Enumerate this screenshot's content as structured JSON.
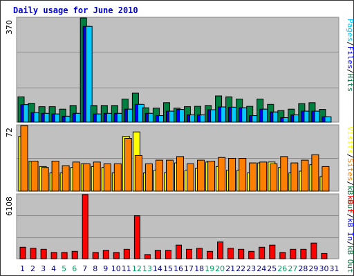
{
  "title": "Daily usage for June 2010",
  "chart_data": [
    {
      "type": "bar",
      "panel": "hits-files-pages",
      "ymax_label": "370",
      "ylim": [
        0,
        370
      ],
      "legend": [
        "Pages",
        "/",
        "Files",
        "/",
        "Hits"
      ],
      "legend_colors": [
        "#00ccff",
        "#000000",
        "#0000ff",
        "#000000",
        "#008040"
      ],
      "categories": [
        1,
        2,
        3,
        4,
        5,
        6,
        7,
        8,
        9,
        10,
        11,
        12,
        13,
        14,
        15,
        16,
        17,
        18,
        19,
        20,
        21,
        22,
        23,
        24,
        25,
        26,
        27,
        28,
        29,
        30,
        31
      ],
      "series": [
        {
          "name": "Hits",
          "color": "#008040",
          "values": [
            90,
            67,
            55,
            55,
            46,
            59,
            370,
            59,
            59,
            59,
            82,
            103,
            51,
            50,
            69,
            50,
            55,
            56,
            59,
            93,
            90,
            82,
            56,
            82,
            63,
            41,
            46,
            66,
            69,
            45,
            0
          ]
        },
        {
          "name": "Files",
          "color": "#0000ff",
          "values": [
            62,
            34,
            31,
            29,
            21,
            31,
            340,
            29,
            31,
            31,
            46,
            63,
            31,
            23,
            39,
            45,
            26,
            26,
            44,
            54,
            53,
            51,
            23,
            46,
            36,
            16,
            26,
            39,
            39,
            19,
            0
          ]
        },
        {
          "name": "Pages",
          "color": "#00ccff",
          "values": [
            62,
            34,
            31,
            29,
            21,
            31,
            340,
            29,
            31,
            31,
            46,
            63,
            31,
            23,
            39,
            45,
            26,
            26,
            44,
            54,
            53,
            51,
            23,
            46,
            36,
            16,
            26,
            39,
            39,
            19,
            0
          ]
        }
      ]
    },
    {
      "type": "bar",
      "panel": "visits-sites",
      "ymax_label": "72",
      "ylim": [
        0,
        72
      ],
      "legend": [
        "Visits",
        "/",
        "Sites",
        "/",
        "kB Out"
      ],
      "legend_colors": [
        "#ffff00",
        "#000000",
        "#ff8000",
        "#000000",
        "#008040"
      ],
      "categories": [
        1,
        2,
        3,
        4,
        5,
        6,
        7,
        8,
        9,
        10,
        11,
        12,
        13,
        14,
        15,
        16,
        17,
        18,
        19,
        20,
        21,
        22,
        23,
        24,
        25,
        26,
        27,
        28,
        29,
        30,
        31
      ],
      "series": [
        {
          "name": "Visits",
          "color": "#ffff00",
          "values": [
            60,
            33,
            27,
            20,
            20,
            26,
            30,
            27,
            26,
            20,
            60,
            65,
            20,
            23,
            20,
            31,
            23,
            25,
            32,
            27,
            23,
            23,
            20,
            31,
            32,
            26,
            20,
            22,
            29,
            16,
            0
          ]
        },
        {
          "name": "Sites",
          "color": "#ff8000",
          "values": [
            72,
            33,
            26,
            33,
            28,
            32,
            30,
            32,
            30,
            30,
            58,
            39,
            30,
            34,
            34,
            38,
            30,
            34,
            33,
            37,
            36,
            36,
            31,
            32,
            30,
            38,
            31,
            34,
            40,
            27,
            0
          ]
        }
      ]
    },
    {
      "type": "bar",
      "panel": "kbytes",
      "ymax_label": "6108",
      "ylim": [
        0,
        6108
      ],
      "legend": [
        "kB F",
        "/",
        "kB In",
        "/",
        "kB Out"
      ],
      "legend_colors": [
        "#ff0000",
        "#000000",
        "#0000ff",
        "#000000",
        "#008040"
      ],
      "categories": [
        1,
        2,
        3,
        4,
        5,
        6,
        7,
        8,
        9,
        10,
        11,
        12,
        13,
        14,
        15,
        16,
        17,
        18,
        19,
        20,
        21,
        22,
        23,
        24,
        25,
        26,
        27,
        28,
        29,
        30,
        31
      ],
      "series": [
        {
          "name": "kB F",
          "color": "#ff0000",
          "values": [
            1100,
            1000,
            900,
            600,
            600,
            700,
            6108,
            600,
            800,
            600,
            900,
            4100,
            400,
            800,
            800,
            1300,
            900,
            1000,
            700,
            1600,
            1000,
            900,
            700,
            1100,
            1300,
            600,
            900,
            900,
            1500,
            500,
            0
          ]
        }
      ]
    }
  ],
  "day_colors": [
    "#000080",
    "#000080",
    "#000080",
    "#000080",
    "#00a060",
    "#00a060",
    "#000080",
    "#000080",
    "#000080",
    "#000080",
    "#000080",
    "#00a060",
    "#00a060",
    "#000080",
    "#000080",
    "#000080",
    "#000080",
    "#000080",
    "#00a060",
    "#00a060",
    "#000080",
    "#000080",
    "#000080",
    "#000080",
    "#000080",
    "#00a060",
    "#00a060",
    "#000080",
    "#000080",
    "#000080",
    "#000080"
  ],
  "colors": {
    "gridline": "#8a8a8a",
    "panel_bg": "#c0c0c0",
    "title": "#0000cc"
  }
}
